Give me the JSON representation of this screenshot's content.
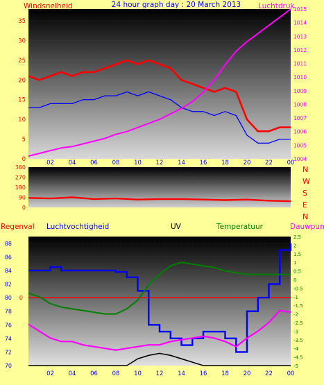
{
  "header": {
    "left_label": "Windsnelheid",
    "title": "24 hour graph day : 20 March 2013",
    "right_label": "Luchtdruk"
  },
  "mid_header": {
    "regenval": "Regenval",
    "luchtvochtigheid": "Luchtvochtigheid",
    "uv": "UV",
    "temperatuur": "Temperatuur",
    "dauwpunt": "Dauwpunt"
  },
  "colors": {
    "background": "#ffff99",
    "wind_gust": "#ff0000",
    "wind_avg": "#0000ff",
    "pressure": "#ff00ff",
    "humidity": "#0000ff",
    "temperature": "#008000",
    "dewpoint": "#ff00ff",
    "solar": "#ffff00",
    "uv": "#000000",
    "rain": "#ff0000"
  },
  "x_ticks": [
    "02",
    "04",
    "06",
    "08",
    "10",
    "12",
    "14",
    "16",
    "18",
    "20",
    "22",
    "00"
  ],
  "chart_data": [
    {
      "type": "line",
      "title": "24 hour graph day : 20 March 2013",
      "x_hours": [
        0,
        1,
        2,
        3,
        4,
        5,
        6,
        7,
        8,
        9,
        10,
        11,
        12,
        13,
        14,
        15,
        16,
        17,
        18,
        19,
        20,
        21,
        22,
        23,
        24
      ],
      "series": [
        {
          "name": "Windsnelheid",
          "axis": "left",
          "values": [
            21,
            20,
            21,
            22,
            21,
            22,
            22,
            23,
            24,
            25,
            24,
            25,
            24,
            23,
            20,
            19,
            18,
            17,
            18,
            17,
            10,
            7,
            7,
            8,
            8
          ]
        },
        {
          "name": "wind avg",
          "axis": "left",
          "values": [
            13,
            13,
            14,
            14,
            14,
            15,
            15,
            16,
            16,
            17,
            16,
            17,
            16,
            15,
            13,
            12,
            12,
            11,
            12,
            11,
            6,
            4,
            4,
            5,
            5
          ]
        },
        {
          "name": "Luchtdruk",
          "axis": "right",
          "values": [
            1004.2,
            1004.4,
            1004.6,
            1004.8,
            1004.9,
            1005.1,
            1005.3,
            1005.5,
            1005.8,
            1006.0,
            1006.3,
            1006.6,
            1006.9,
            1007.3,
            1007.7,
            1008.2,
            1008.9,
            1009.8,
            1010.9,
            1011.9,
            1012.6,
            1013.2,
            1013.8,
            1014.4,
            1015.0
          ]
        }
      ],
      "ylim_left": [
        0,
        38
      ],
      "ylim_right": [
        1004,
        1015
      ],
      "y_ticks_left": [
        0,
        5,
        10,
        15,
        20,
        25,
        30,
        35
      ],
      "y_ticks_right": [
        1004,
        1005,
        1006,
        1007,
        1008,
        1009,
        1010,
        1011,
        1012,
        1013,
        1014,
        1015
      ]
    },
    {
      "type": "line",
      "title": "",
      "x_hours": [
        0,
        2,
        4,
        6,
        8,
        10,
        12,
        14,
        16,
        18,
        20,
        22,
        24
      ],
      "series": [
        {
          "name": "wind direction",
          "values": [
            85,
            80,
            90,
            75,
            80,
            70,
            75,
            75,
            70,
            65,
            70,
            60,
            55
          ]
        }
      ],
      "ylim": [
        0,
        360
      ],
      "y_ticks": [
        0,
        90,
        180,
        270,
        360
      ],
      "right_labels": [
        "N",
        "W",
        "S",
        "E",
        "N"
      ]
    },
    {
      "type": "line",
      "title": "",
      "x_hours": [
        0,
        1,
        2,
        3,
        4,
        5,
        6,
        7,
        8,
        9,
        10,
        11,
        12,
        13,
        14,
        15,
        16,
        17,
        18,
        19,
        20,
        21,
        22,
        23,
        24
      ],
      "series": [
        {
          "name": "Luchtvochtigheid",
          "axis": "humidity",
          "values": [
            84,
            84,
            84.5,
            84,
            84,
            84,
            84,
            84,
            83.8,
            83,
            81,
            76,
            75,
            74,
            73,
            74,
            75,
            75,
            74,
            72,
            78,
            80,
            82,
            87,
            88
          ]
        },
        {
          "name": "Temperatuur",
          "axis": "temp",
          "values": [
            -0.8,
            -1.0,
            -1.4,
            -1.6,
            -1.7,
            -1.8,
            -1.9,
            -2.0,
            -2.0,
            -1.7,
            -1.2,
            -0.3,
            0.3,
            0.8,
            1.0,
            0.9,
            0.8,
            0.7,
            0.5,
            0.4,
            0.3,
            0.3,
            0.3,
            0.3,
            0.3
          ]
        },
        {
          "name": "Dauwpunt",
          "axis": "temp",
          "values": [
            -2.6,
            -3.0,
            -3.4,
            -3.6,
            -3.6,
            -3.8,
            -3.9,
            -4.0,
            -4.1,
            -4.0,
            -3.9,
            -3.8,
            -3.8,
            -3.6,
            -3.5,
            -3.4,
            -3.3,
            -3.4,
            -3.6,
            -3.9,
            -3.4,
            -3.0,
            -2.5,
            -1.8,
            -1.9
          ]
        },
        {
          "name": "UV",
          "axis": "humidity",
          "values": [
            70,
            70,
            70,
            70,
            70,
            70,
            70,
            70,
            70,
            70,
            71,
            71.5,
            71.8,
            71.5,
            71,
            70.5,
            70,
            70,
            70,
            70,
            70,
            70,
            70,
            70,
            70
          ]
        },
        {
          "name": "Regenval",
          "axis": "humidity",
          "values": [
            80,
            80,
            80,
            80,
            80,
            80,
            80,
            80,
            80,
            80,
            80,
            80,
            80,
            80,
            80,
            80,
            80,
            80,
            80,
            80,
            80,
            80,
            80,
            80,
            80
          ]
        }
      ],
      "ylim_humidity": [
        70,
        89
      ],
      "y_ticks_humidity": [
        70,
        72,
        74,
        76,
        78,
        80,
        82,
        84,
        86,
        88
      ],
      "ylim_temp": [
        -5,
        2.5
      ],
      "y_ticks_temp": [
        -5,
        -4.5,
        -4,
        -3.5,
        -3,
        -2.5,
        -2,
        -1.5,
        -1,
        -0.5,
        0,
        0.5,
        1,
        1.5,
        2,
        2.5
      ],
      "rain_axis_label": "0"
    }
  ]
}
